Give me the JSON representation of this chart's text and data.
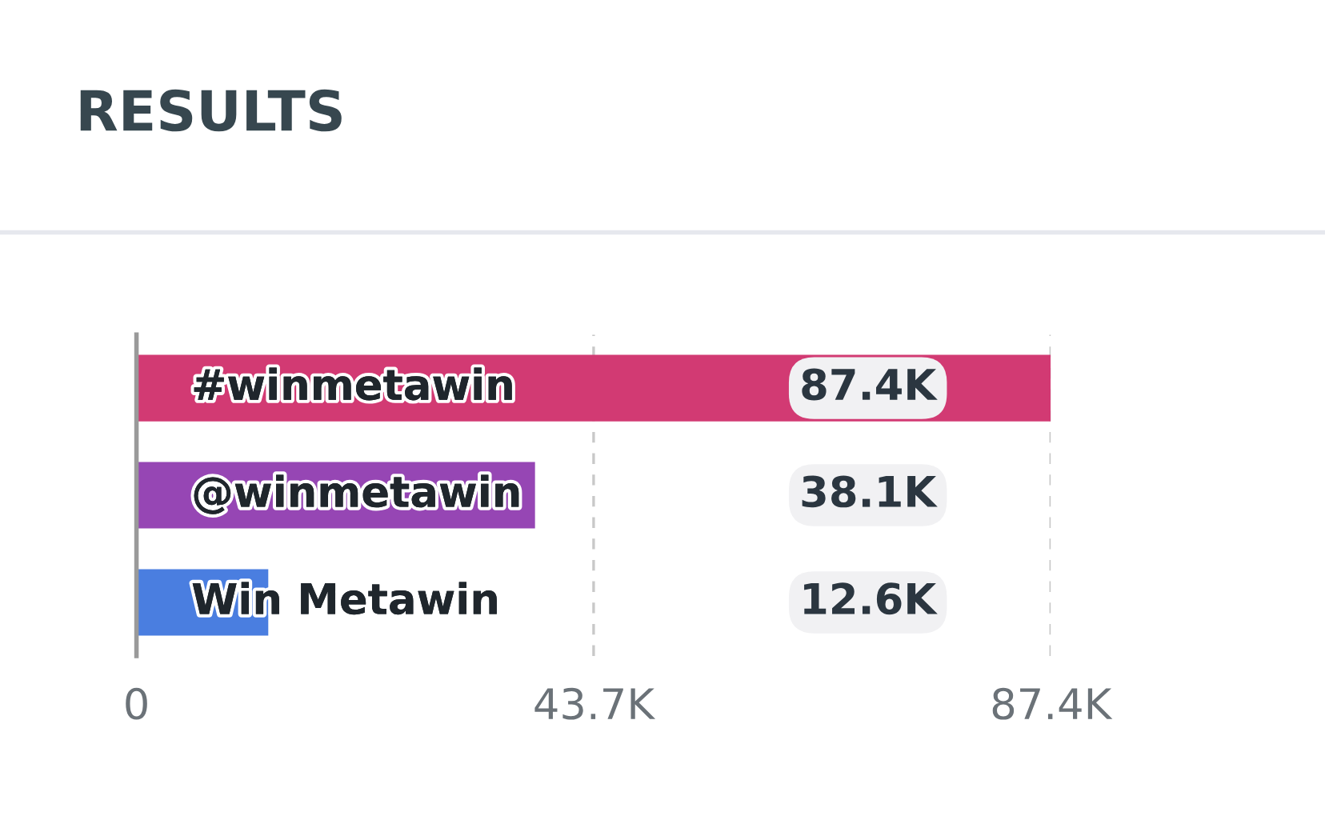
{
  "chart_data": {
    "type": "bar",
    "orientation": "horizontal",
    "title": "RESULTS",
    "categories": [
      "#winmetawin",
      "@winmetawin",
      "Win Metawin"
    ],
    "values": [
      87.4,
      38.1,
      12.6
    ],
    "colors": [
      "#d23a73",
      "#9646b4",
      "#4a7ee0"
    ],
    "value_labels": [
      "87.4K",
      "38.1K",
      "12.6K"
    ],
    "xlim": [
      0,
      87.4
    ],
    "xticks": [
      0,
      {
        "value": 43.7,
        "label": "43.7K"
      },
      {
        "value": 87.4,
        "label": "87.4K"
      }
    ],
    "grid": "x",
    "line_style": "dashed",
    "legend": false
  }
}
